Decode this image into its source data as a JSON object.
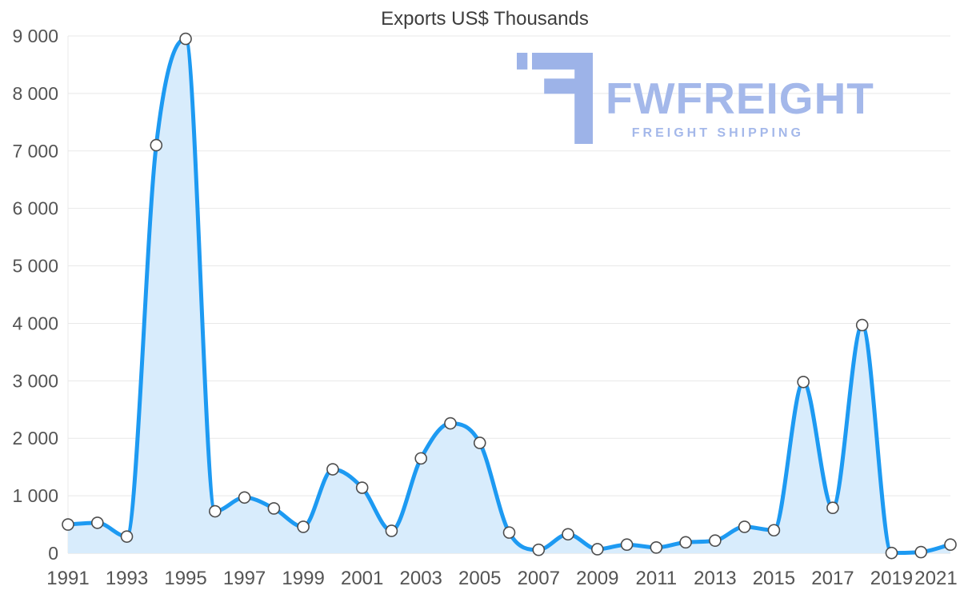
{
  "chart_data": {
    "type": "area",
    "title": "Exports US$ Thousands",
    "x": [
      1991,
      1992,
      1993,
      1994,
      1995,
      1996,
      1997,
      1998,
      1999,
      2000,
      2001,
      2002,
      2003,
      2004,
      2005,
      2006,
      2007,
      2008,
      2009,
      2010,
      2011,
      2012,
      2013,
      2014,
      2015,
      2016,
      2017,
      2018,
      2019,
      2020,
      2021
    ],
    "values": [
      500,
      530,
      290,
      7100,
      8950,
      730,
      970,
      780,
      460,
      1460,
      1140,
      390,
      1650,
      2260,
      1920,
      360,
      60,
      330,
      70,
      150,
      100,
      190,
      220,
      460,
      400,
      2980,
      790,
      3970,
      5,
      20,
      150
    ],
    "ylim": [
      0,
      9000
    ],
    "yticks": [
      0,
      1000,
      2000,
      3000,
      4000,
      5000,
      6000,
      7000,
      8000,
      9000
    ],
    "ytick_labels": [
      "0",
      "1 000",
      "2 000",
      "3 000",
      "4 000",
      "5 000",
      "6 000",
      "7 000",
      "8 000",
      "9 000"
    ],
    "xticks": [
      1991,
      1993,
      1995,
      1997,
      1999,
      2001,
      2003,
      2005,
      2007,
      2009,
      2011,
      2013,
      2015,
      2017,
      2019,
      2021
    ],
    "grid": true,
    "legend": "none",
    "colors": {
      "line": "#1d9af2",
      "area": "#d8ecfc",
      "marker_fill": "#ffffff",
      "marker_stroke": "#4d4d4d",
      "grid": "#e8e8e8",
      "axis_text": "#545454"
    }
  },
  "watermark": {
    "brand": "FWFREIGHT",
    "tagline": "FREIGHT SHIPPING",
    "icon": "fwfreight-logo-icon",
    "color": "#a4b8ea"
  }
}
